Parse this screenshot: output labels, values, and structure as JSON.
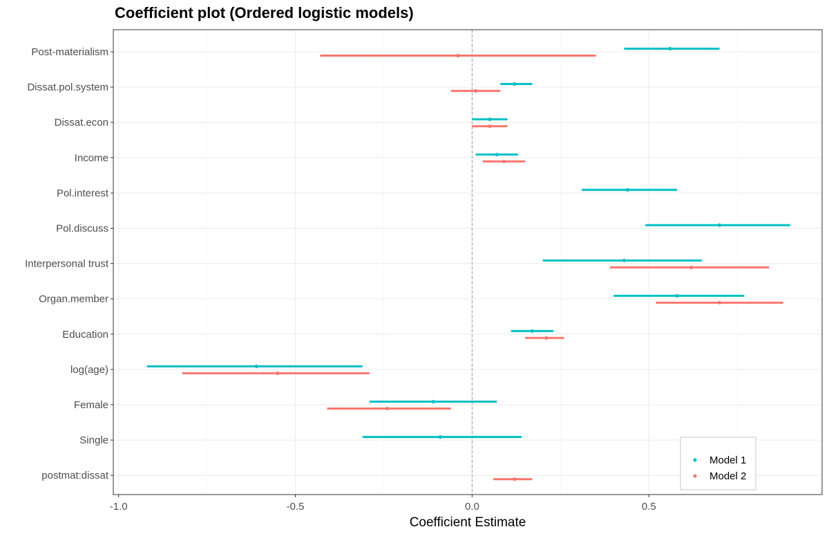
{
  "chart_data": {
    "type": "coefficient-plot",
    "title": "Coefficient plot (Ordered logistic models)",
    "xlabel": "Coefficient Estimate",
    "ylabel": "",
    "xlim": [
      -1.015,
      0.99
    ],
    "x_ticks": [
      -1.0,
      -0.5,
      0.0,
      0.5
    ],
    "x_tick_labels": [
      "-1.0",
      "-0.5",
      "0.0",
      "0.5"
    ],
    "reference_line": 0,
    "grid": true,
    "legend_position": "bottom-right",
    "categories": [
      "Post-materialism",
      "Dissat.pol.system",
      "Dissat.econ",
      "Income",
      "Pol.interest",
      "Pol.discuss",
      "Interpersonal trust",
      "Organ.member",
      "Education",
      "log(age)",
      "Female",
      "Single",
      "postmat:dissat"
    ],
    "series": [
      {
        "name": "Model 1",
        "color": "#00BFC4",
        "points": [
          {
            "term": "Post-materialism",
            "estimate": 0.56,
            "low": 0.43,
            "high": 0.7
          },
          {
            "term": "Dissat.pol.system",
            "estimate": 0.12,
            "low": 0.08,
            "high": 0.17
          },
          {
            "term": "Dissat.econ",
            "estimate": 0.05,
            "low": 0.0,
            "high": 0.1
          },
          {
            "term": "Income",
            "estimate": 0.07,
            "low": 0.01,
            "high": 0.13
          },
          {
            "term": "Pol.interest",
            "estimate": 0.44,
            "low": 0.31,
            "high": 0.58
          },
          {
            "term": "Pol.discuss",
            "estimate": 0.7,
            "low": 0.49,
            "high": 0.9
          },
          {
            "term": "Interpersonal trust",
            "estimate": 0.43,
            "low": 0.2,
            "high": 0.65
          },
          {
            "term": "Organ.member",
            "estimate": 0.58,
            "low": 0.4,
            "high": 0.77
          },
          {
            "term": "Education",
            "estimate": 0.17,
            "low": 0.11,
            "high": 0.23
          },
          {
            "term": "log(age)",
            "estimate": -0.61,
            "low": -0.92,
            "high": -0.31
          },
          {
            "term": "Female",
            "estimate": -0.11,
            "low": -0.29,
            "high": 0.07
          },
          {
            "term": "Single",
            "estimate": -0.09,
            "low": -0.31,
            "high": 0.14
          }
        ]
      },
      {
        "name": "Model 2",
        "color": "#F8766D",
        "points": [
          {
            "term": "Post-materialism",
            "estimate": -0.04,
            "low": -0.43,
            "high": 0.35
          },
          {
            "term": "Dissat.pol.system",
            "estimate": 0.01,
            "low": -0.06,
            "high": 0.08
          },
          {
            "term": "Dissat.econ",
            "estimate": 0.05,
            "low": 0.0,
            "high": 0.1
          },
          {
            "term": "Income",
            "estimate": 0.09,
            "low": 0.03,
            "high": 0.15
          },
          {
            "term": "Interpersonal trust",
            "estimate": 0.62,
            "low": 0.39,
            "high": 0.84
          },
          {
            "term": "Organ.member",
            "estimate": 0.7,
            "low": 0.52,
            "high": 0.88
          },
          {
            "term": "Education",
            "estimate": 0.21,
            "low": 0.15,
            "high": 0.26
          },
          {
            "term": "log(age)",
            "estimate": -0.55,
            "low": -0.82,
            "high": -0.29
          },
          {
            "term": "Female",
            "estimate": -0.24,
            "low": -0.41,
            "high": -0.06
          },
          {
            "term": "postmat:dissat",
            "estimate": 0.12,
            "low": 0.06,
            "high": 0.17
          }
        ]
      }
    ]
  }
}
